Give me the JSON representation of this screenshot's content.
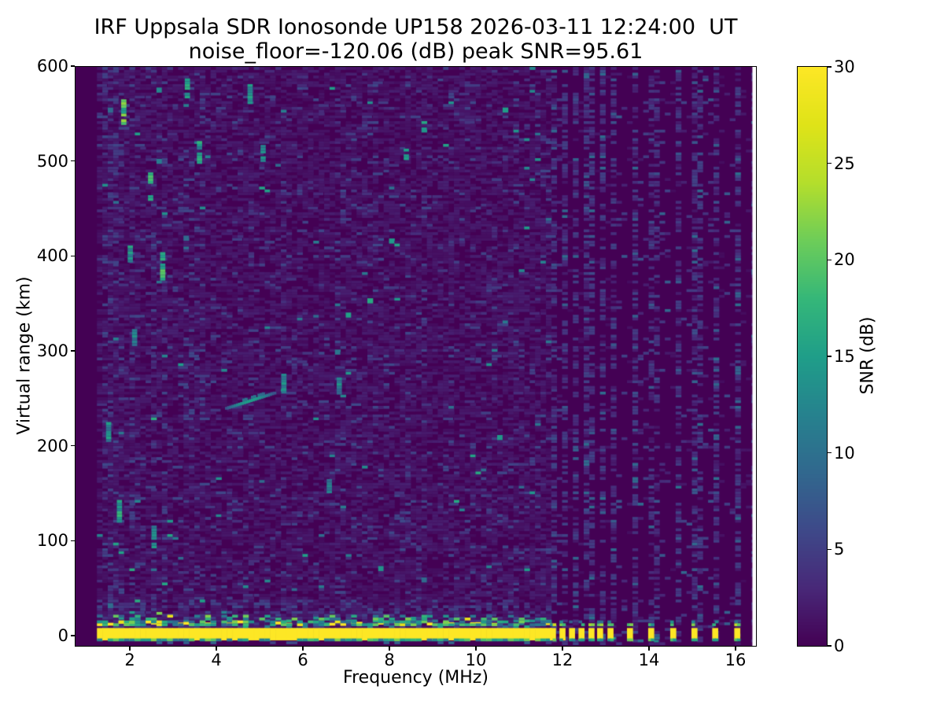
{
  "figure": {
    "background_color": "#ffffff",
    "frame_color": "#000000"
  },
  "chart_data": {
    "type": "heatmap",
    "title": "IRF Uppsala SDR Ionosonde UP158 2026-03-11 12:24:00  UT",
    "subtitle": "noise_floor=-120.06 (dB) peak SNR=95.61",
    "xlabel": "Frequency (MHz)",
    "ylabel": "Virtual range (km)",
    "xlim": [
      0.745,
      16.47
    ],
    "ylim": [
      -10.9,
      600
    ],
    "xticks": [
      2,
      4,
      6,
      8,
      10,
      12,
      14,
      16
    ],
    "yticks": [
      0,
      100,
      200,
      300,
      400,
      500,
      600
    ],
    "noise_floor_db": -120.06,
    "peak_snr_db": 95.61,
    "colorbar": {
      "label": "SNR (dB)",
      "min": 0,
      "max": 30,
      "ticks": [
        0,
        5,
        10,
        15,
        20,
        25,
        30
      ],
      "colormap": "viridis",
      "viridis_stops": [
        "#440154",
        "#482878",
        "#3e4989",
        "#31688e",
        "#26828e",
        "#1f9e89",
        "#35b779",
        "#6dcd59",
        "#b4de2c",
        "#dfe318",
        "#fde725"
      ]
    },
    "data_range": {
      "f_min": 1.24,
      "f_max": 16.38,
      "df": 0.125,
      "km_min": -10,
      "km_max": 600,
      "dkm": 3
    },
    "ground_band": {
      "f_start": 1.24,
      "f_end": 11.62,
      "km_bottom": -5,
      "km_top": 8,
      "value_db": 30
    },
    "pulse_bars": {
      "freqs": [
        11.78,
        12.0,
        12.22,
        12.44,
        12.67,
        12.87,
        13.11,
        13.56,
        14.05,
        14.56,
        15.05,
        15.53,
        16.04
      ],
      "width_mhz": 0.14,
      "km_bottom": -5,
      "km_top": 8,
      "value_db": 30
    },
    "rfi_columns": [
      {
        "f": 1.35,
        "s": 0.5
      },
      {
        "f": 1.55,
        "s": 0.55
      },
      {
        "f": 1.75,
        "s": 0.45
      },
      {
        "f": 1.95,
        "s": 0.4
      },
      {
        "f": 2.15,
        "s": 0.3
      },
      {
        "f": 2.45,
        "s": 0.3
      },
      {
        "f": 2.75,
        "s": 0.25
      },
      {
        "f": 3.3,
        "s": 0.2
      },
      {
        "f": 3.55,
        "s": 0.2
      },
      {
        "f": 4.7,
        "s": 0.18
      },
      {
        "f": 5.5,
        "s": 0.22
      },
      {
        "f": 6.8,
        "s": 0.18
      },
      {
        "f": 7.55,
        "s": 0.12
      },
      {
        "f": 8.33,
        "s": 0.4
      },
      {
        "f": 8.75,
        "s": 0.28
      },
      {
        "f": 9.3,
        "s": 0.18
      },
      {
        "f": 10.3,
        "s": 0.22
      },
      {
        "f": 10.9,
        "s": 0.18
      },
      {
        "f": 11.35,
        "s": 0.2
      },
      {
        "f": 11.9,
        "s": 0.3
      },
      {
        "f": 16.38,
        "s": 0.5
      },
      {
        "f": 13.3,
        "s": 0.12
      },
      {
        "f": 13.8,
        "s": 0.12
      },
      {
        "f": 14.3,
        "s": 0.12
      },
      {
        "f": 14.8,
        "s": 0.12
      },
      {
        "f": 15.3,
        "s": 0.12
      },
      {
        "f": 15.8,
        "s": 0.12
      }
    ],
    "echo_trace": {
      "f1": 4.2,
      "km1": 238,
      "f2": 5.3,
      "km2": 254,
      "db": 15
    },
    "streaks": [
      {
        "f": 1.8,
        "km1": 538,
        "km2": 562,
        "db": 19
      },
      {
        "f": 2.42,
        "km1": 458,
        "km2": 486,
        "db": 20
      },
      {
        "f": 2.7,
        "km1": 374,
        "km2": 402,
        "db": 17
      },
      {
        "f": 1.95,
        "km1": 393,
        "km2": 410,
        "db": 14
      },
      {
        "f": 3.27,
        "km1": 566,
        "km2": 586,
        "db": 14
      },
      {
        "f": 4.72,
        "km1": 560,
        "km2": 580,
        "db": 13
      },
      {
        "f": 3.55,
        "km1": 497,
        "km2": 520,
        "db": 15
      },
      {
        "f": 5.02,
        "km1": 499,
        "km2": 514,
        "db": 13
      },
      {
        "f": 5.5,
        "km1": 255,
        "km2": 273,
        "db": 13
      },
      {
        "f": 6.78,
        "km1": 254,
        "km2": 269,
        "db": 12
      },
      {
        "f": 8.33,
        "km1": 501,
        "km2": 514,
        "db": 14
      },
      {
        "f": 1.7,
        "km1": 116,
        "km2": 142,
        "db": 15
      },
      {
        "f": 2.5,
        "km1": 92,
        "km2": 114,
        "db": 13
      },
      {
        "f": 1.45,
        "km1": 204,
        "km2": 224,
        "db": 13
      },
      {
        "f": 2.05,
        "km1": 305,
        "km2": 322,
        "db": 12
      },
      {
        "f": 6.55,
        "km1": 150,
        "km2": 163,
        "db": 11
      }
    ],
    "noise": {
      "seed": 1337,
      "faint_db": [
        0.7,
        2.4
      ],
      "mid_db": [
        3.0,
        6.0
      ],
      "teal_db": [
        9.0,
        17.0
      ]
    }
  }
}
